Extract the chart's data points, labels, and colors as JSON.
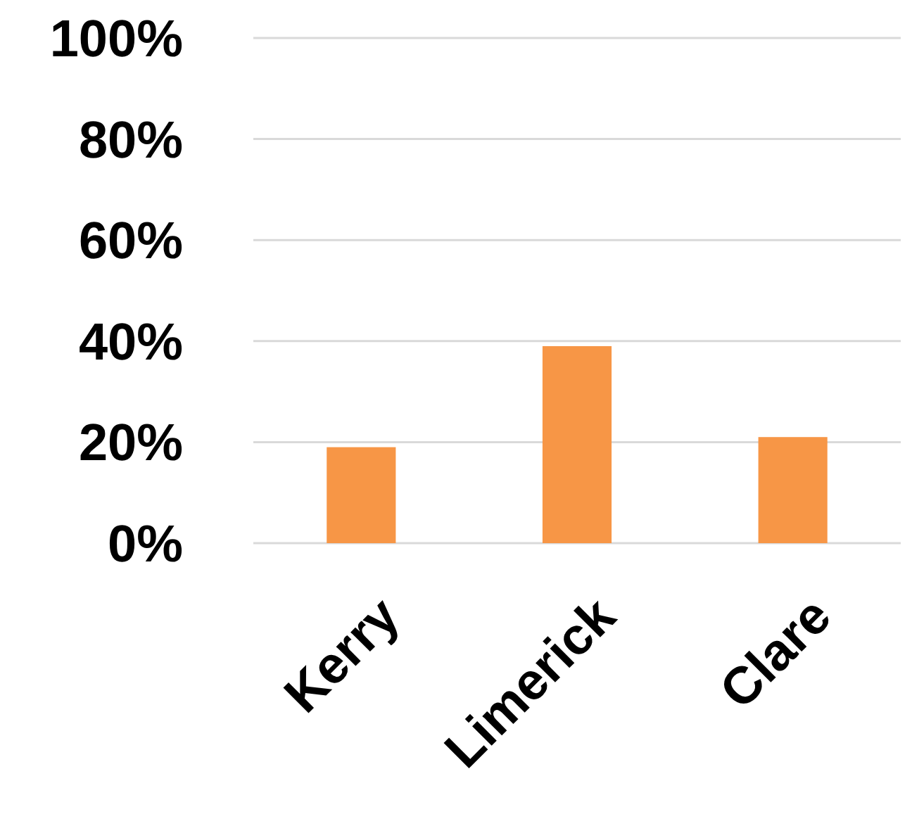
{
  "chart_data": {
    "type": "bar",
    "categories": [
      "Kerry",
      "Limerick",
      "Clare"
    ],
    "values": [
      19,
      39,
      21
    ],
    "color": "#f79646",
    "ylim": [
      0,
      100
    ],
    "yticks": [
      {
        "value": 0,
        "label": "0%"
      },
      {
        "value": 20,
        "label": "20%"
      },
      {
        "value": 40,
        "label": "40%"
      },
      {
        "value": 60,
        "label": "60%"
      },
      {
        "value": 80,
        "label": "80%"
      },
      {
        "value": 100,
        "label": "100%"
      }
    ],
    "grid": true
  }
}
